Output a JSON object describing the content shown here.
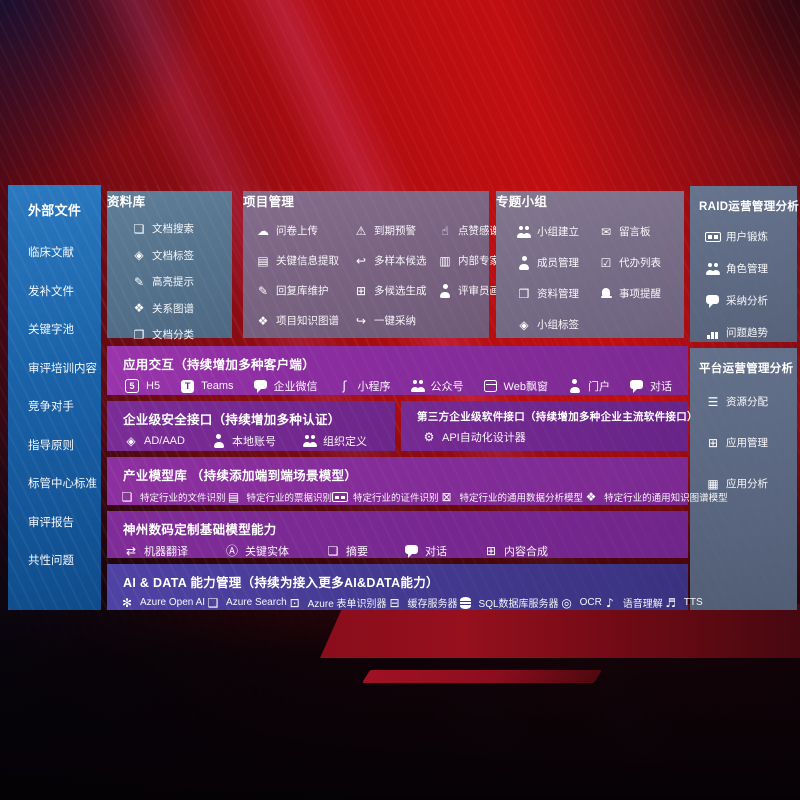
{
  "sidebar": {
    "title": "外部文件",
    "items": [
      "临床文献",
      "发补文件",
      "关键字池",
      "审评培训内容",
      "竞争对手",
      "指导原则",
      "标管中心标准",
      "审评报告",
      "共性问题"
    ]
  },
  "library": {
    "title": "资料库",
    "items": [
      {
        "label": "文档搜索",
        "glyph": "❏"
      },
      {
        "label": "文档标签",
        "glyph": "◈"
      },
      {
        "label": "高亮提示",
        "glyph": "✎"
      },
      {
        "label": "关系图谱",
        "glyph": "❖"
      },
      {
        "label": "文档分类",
        "glyph": "❐"
      }
    ]
  },
  "project": {
    "title": "项目管理",
    "items": [
      {
        "label": "问卷上传",
        "glyph": "☁"
      },
      {
        "label": "到期预警",
        "glyph": "⚠"
      },
      {
        "label": "点赞感谢",
        "glyph": "☝"
      },
      {
        "label": "关键信息提取",
        "glyph": "▤"
      },
      {
        "label": "多样本候选",
        "glyph": "↩"
      },
      {
        "label": "内部专家排名",
        "glyph": "▥"
      },
      {
        "label": "回复库维护",
        "glyph": "✎"
      },
      {
        "label": "多候选生成",
        "glyph": "⊞"
      },
      {
        "label": "评审员画像",
        "glyph": ""
      },
      {
        "label": "项目知识图谱",
        "glyph": "❖"
      },
      {
        "label": "一键采纳",
        "glyph": "↪"
      }
    ]
  },
  "groups": {
    "title": "专题小组",
    "items": [
      {
        "label": "小组建立",
        "glyph": ""
      },
      {
        "label": "留言板",
        "glyph": "✉"
      },
      {
        "label": "成员管理",
        "glyph": ""
      },
      {
        "label": "代办列表",
        "glyph": "☑"
      },
      {
        "label": "资料管理",
        "glyph": "❒"
      },
      {
        "label": "事项提醒",
        "glyph": ""
      },
      {
        "label": "小组标签",
        "glyph": "◈"
      }
    ]
  },
  "raid": {
    "title": "RAID运营管理分析",
    "items": [
      {
        "label": "用户锻炼",
        "glyph": ""
      },
      {
        "label": "角色管理",
        "glyph": ""
      },
      {
        "label": "采纳分析",
        "glyph": ""
      },
      {
        "label": "问题趋势",
        "glyph": ""
      }
    ]
  },
  "platform": {
    "title": "平台运营管理分析",
    "items": [
      {
        "label": "资源分配",
        "glyph": "☰"
      },
      {
        "label": "应用管理",
        "glyph": "⊞"
      },
      {
        "label": "应用分析",
        "glyph": "▦"
      }
    ]
  },
  "interaction": {
    "title": "应用交互（持续增加多种客户端）",
    "items": [
      {
        "label": "H5",
        "glyph": "5"
      },
      {
        "label": "Teams",
        "glyph": "T"
      },
      {
        "label": "企业微信",
        "glyph": ""
      },
      {
        "label": "小程序",
        "glyph": "ʃ"
      },
      {
        "label": "公众号",
        "glyph": ""
      },
      {
        "label": "Web飘窗",
        "glyph": ""
      },
      {
        "label": "门户",
        "glyph": ""
      },
      {
        "label": "对话",
        "glyph": ""
      }
    ]
  },
  "security": {
    "title": "企业级安全接口（持续增加多种认证）",
    "items": [
      {
        "label": "AD/AAD",
        "glyph": "◈"
      },
      {
        "label": "本地账号",
        "glyph": ""
      },
      {
        "label": "组织定义",
        "glyph": ""
      }
    ]
  },
  "thirdparty": {
    "title": "第三方企业级软件接口（持续增加多种企业主流软件接口）",
    "items": [
      {
        "label": "API自动化设计器",
        "glyph": "⚙"
      }
    ]
  },
  "industry": {
    "title": "产业模型库 （持续添加端到端场景模型）",
    "items": [
      {
        "label": "特定行业的文件识别",
        "glyph": "❏"
      },
      {
        "label": "特定行业的票据识别",
        "glyph": "▤"
      },
      {
        "label": "特定行业的证件识别",
        "glyph": ""
      },
      {
        "label": "特定行业的通用数据分析模型",
        "glyph": "⊠"
      },
      {
        "label": "特定行业的通用知识图谱模型",
        "glyph": "❖"
      }
    ]
  },
  "foundation": {
    "title": "神州数码定制基础模型能力",
    "items": [
      {
        "label": "机器翻译",
        "glyph": "⇄"
      },
      {
        "label": "关键实体",
        "glyph": "Ⓐ"
      },
      {
        "label": "摘要",
        "glyph": "❏"
      },
      {
        "label": "对话",
        "glyph": ""
      },
      {
        "label": "内容合成",
        "glyph": "⊞"
      }
    ]
  },
  "aidata": {
    "title": "AI & DATA 能力管理（持续为接入更多AI&DATA能力）",
    "items": [
      {
        "label": "Azure Open AI",
        "glyph": "✻"
      },
      {
        "label": "Azure Search",
        "glyph": "❑"
      },
      {
        "label": "Azure 表单识别器",
        "glyph": "⊡"
      },
      {
        "label": "缓存服务器",
        "glyph": "⊟"
      },
      {
        "label": "SQL数据库服务器",
        "glyph": ""
      },
      {
        "label": "OCR",
        "glyph": "◎"
      },
      {
        "label": "语音理解",
        "glyph": "♪"
      },
      {
        "label": "TTS",
        "glyph": "♬"
      }
    ]
  },
  "colors": {
    "background_red": "#b30d11",
    "sidebar_blue": "#1a62a8",
    "panel_slate": "#5f7e97",
    "panel_mauve": "#846d8c",
    "band_purple": "#7b2c97",
    "band_indigo": "#453a92"
  }
}
